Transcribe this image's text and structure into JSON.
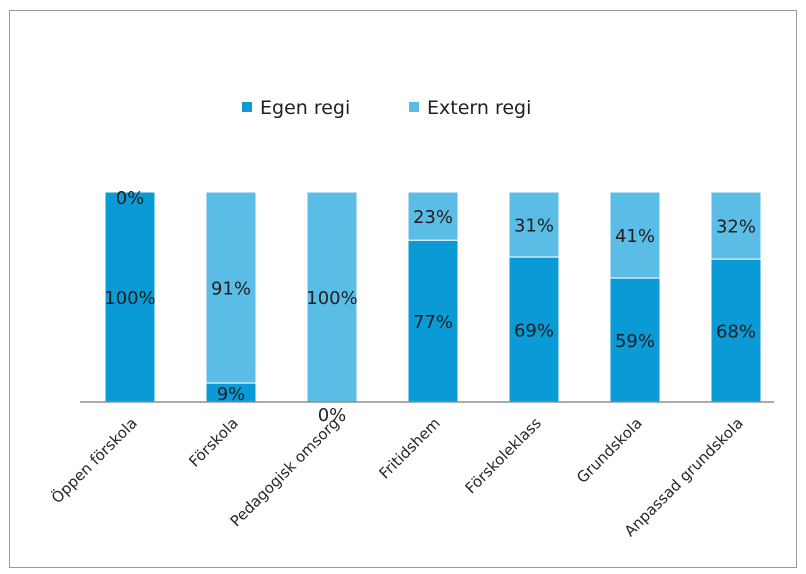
{
  "chart_data": {
    "type": "bar",
    "stacked": true,
    "categories": [
      "Öppen förskola",
      "Förskola",
      "Pedagogisk omsorg",
      "Fritidshem",
      "Förskoleklass",
      "Grundskola",
      "Anpassad grundskola"
    ],
    "series": [
      {
        "name": "Egen regi",
        "values": [
          100,
          9,
          0,
          77,
          69,
          59,
          68
        ],
        "labels": [
          "100%",
          "9%",
          "0%",
          "77%",
          "69%",
          "59%",
          "68%"
        ],
        "color": "#0a9ad6"
      },
      {
        "name": "Extern regi",
        "values": [
          0,
          91,
          100,
          23,
          31,
          41,
          32
        ],
        "labels": [
          "0%",
          "91%",
          "100%",
          "23%",
          "31%",
          "41%",
          "32%"
        ],
        "color": "#5bbde6"
      }
    ],
    "ylim": [
      0,
      100
    ],
    "legend_position": "top",
    "grid": false
  }
}
